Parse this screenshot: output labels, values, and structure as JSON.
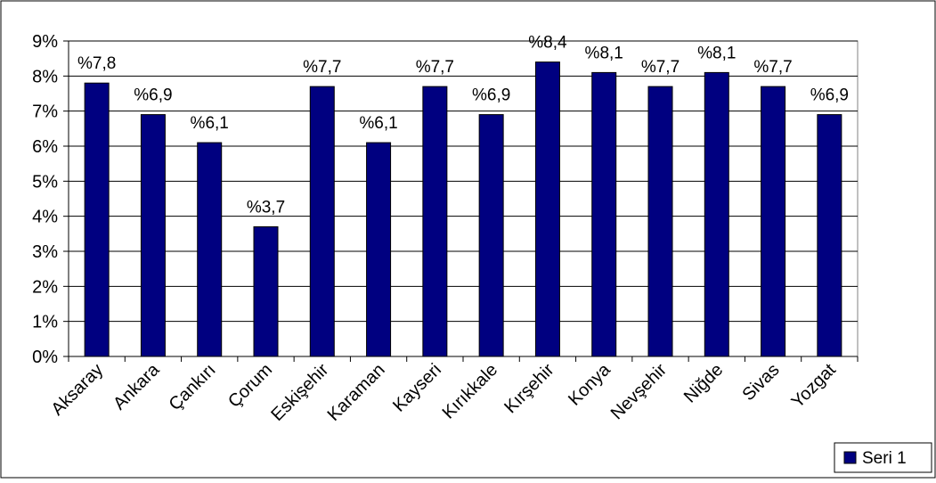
{
  "chart_data": {
    "type": "bar",
    "categories": [
      "Aksaray",
      "Ankara",
      "Çankırı",
      "Çorum",
      "Eskişehir",
      "Karaman",
      "Kayseri",
      "Kırıkkale",
      "Kırşehir",
      "Konya",
      "Nevşehir",
      "Niğde",
      "Sivas",
      "Yozgat"
    ],
    "series": [
      {
        "name": "Seri 1",
        "values": [
          7.8,
          6.9,
          6.1,
          3.7,
          7.7,
          6.1,
          7.7,
          6.9,
          8.4,
          8.1,
          7.7,
          8.1,
          7.7,
          6.9
        ],
        "labels": [
          "%7,8",
          "%6,9",
          "%6,1",
          "%3,7",
          "%7,7",
          "%6,1",
          "%7,7",
          "%6,9",
          "%8,4",
          "%8,1",
          "%7,7",
          "%8,1",
          "%7,7",
          "%6,9"
        ],
        "color": "#000080"
      }
    ],
    "y_ticks": [
      "0%",
      "1%",
      "2%",
      "3%",
      "4%",
      "5%",
      "6%",
      "7%",
      "8%",
      "9%"
    ],
    "ylim": [
      0,
      9
    ],
    "grid": true,
    "legend": "bottom-right",
    "title": "",
    "xlabel": "",
    "ylabel": ""
  }
}
